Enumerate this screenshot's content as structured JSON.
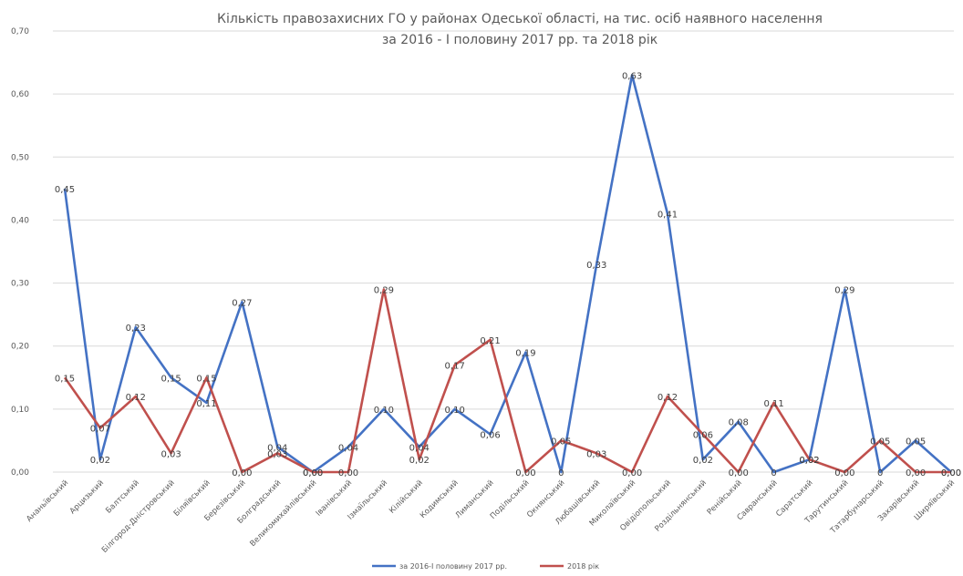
{
  "chart_data": {
    "type": "line",
    "title": "Кількість правозахисних ГО у районах Одеської області, на тис. осіб наявного населення",
    "subtitle": "за 2016 - І половину 2017 рр. та 2018 рік",
    "xlabel": "",
    "ylabel": "",
    "ylim": [
      0,
      0.7
    ],
    "yticks": [
      "0,00",
      "0,10",
      "0,20",
      "0,30",
      "0,40",
      "0,50",
      "0,60",
      "0,70"
    ],
    "grid": true,
    "legend_position": "bottom",
    "categories": [
      "Ананьївський",
      "Арцизький",
      "Балтський",
      "Білгород-Дністровський",
      "Біляївський",
      "Березівський",
      "Болградський",
      "Великомихайлівський",
      "Іванівський",
      "Ізмаїльський",
      "Кілійський",
      "Кодимський",
      "Лиманський",
      "Подільський",
      "Окнянський",
      "Любашівський",
      "Миколаївський",
      "Овідіопольський",
      "Роздільнянський",
      "Ренійський",
      "Савранський",
      "Саратський",
      "Тарутинський",
      "Татарбунарський",
      "Захарівський",
      "Ширяївський"
    ],
    "series": [
      {
        "name": "за 2016-І половину 2017 рр.",
        "color": "#4472c4",
        "values": [
          0.45,
          0.02,
          0.23,
          0.15,
          0.11,
          0.27,
          0.04,
          0.0,
          0.04,
          0.1,
          0.04,
          0.1,
          0.06,
          0.19,
          0,
          0.33,
          0.63,
          0.41,
          0.02,
          0.08,
          0,
          0.02,
          0.29,
          0,
          0.05,
          0.0
        ],
        "labels": [
          "0,45",
          "0,02",
          "0,23",
          "0,15",
          "0,11",
          "0,27",
          "0,04",
          "0,00",
          "0,04",
          "0,10",
          "0,04",
          "0,10",
          "0,06",
          "0,19",
          "0",
          "0,33",
          "0,63",
          "0,41",
          "0,02",
          "0,08",
          "0",
          "0,02",
          "0,29",
          "0",
          "0,05",
          "0,00"
        ]
      },
      {
        "name": "2018 рік",
        "color": "#c0504d",
        "values": [
          0.15,
          0.07,
          0.12,
          0.03,
          0.15,
          0.0,
          0.03,
          0.0,
          0.0,
          0.29,
          0.02,
          0.17,
          0.21,
          0.0,
          0.05,
          0.03,
          0.0,
          0.12,
          0.06,
          0.0,
          0.11,
          0.02,
          0.0,
          0.05,
          0.0,
          0.0
        ],
        "labels": [
          "0,15",
          "0,07",
          "0,12",
          "0,03",
          "0,15",
          "0,00",
          "0,03",
          "0,00",
          "0,00",
          "0,29",
          "0,02",
          "0,17",
          "0,21",
          "0,00",
          "0,05",
          "0,03",
          "0,00",
          "0,12",
          "0,06",
          "0,00",
          "0,11",
          "0,02",
          "0,00",
          "0,05",
          "0,00",
          "0,00"
        ]
      }
    ]
  }
}
